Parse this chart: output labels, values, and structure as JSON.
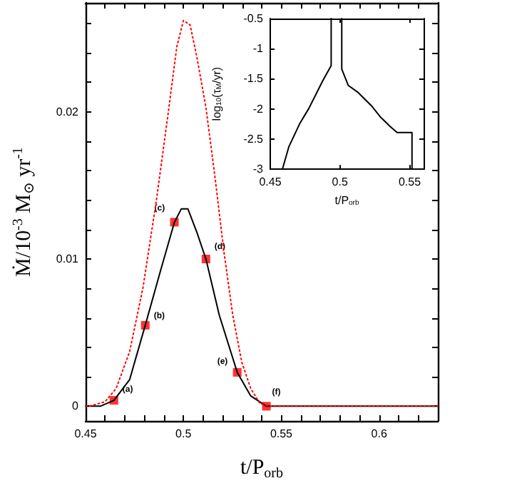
{
  "chart_data": [
    {
      "type": "line",
      "xlabel": "t/P$_{orb}$",
      "ylabel": "Ṁ/10$^{-3}$ M$_{⊙}$ yr$^{-1}$",
      "xlim": [
        0.45,
        0.63
      ],
      "ylim": [
        -0.001,
        0.0274
      ],
      "xticks": [
        0.45,
        {
          "value": 0.46,
          "label": null
        },
        {
          "value": 0.47,
          "label": null
        },
        {
          "value": 0.48,
          "label": null
        },
        {
          "value": 0.49,
          "label": null
        },
        0.5,
        {
          "value": 0.51,
          "label": null
        },
        {
          "value": 0.52,
          "label": null
        },
        {
          "value": 0.53,
          "label": null
        },
        {
          "value": 0.54,
          "label": null
        },
        0.55,
        {
          "value": 0.56,
          "label": null
        },
        {
          "value": 0.57,
          "label": null
        },
        {
          "value": 0.58,
          "label": null
        },
        {
          "value": 0.59,
          "label": null
        },
        0.6,
        {
          "value": 0.61,
          "label": null
        },
        {
          "value": 0.62,
          "label": null
        }
      ],
      "yticks": [
        0,
        {
          "value": 0.002,
          "label": null
        },
        {
          "value": 0.004,
          "label": null
        },
        {
          "value": 0.006,
          "label": null
        },
        {
          "value": 0.008,
          "label": null
        },
        0.01,
        {
          "value": 0.012,
          "label": null
        },
        {
          "value": 0.014,
          "label": null
        },
        {
          "value": 0.016,
          "label": null
        },
        {
          "value": 0.018,
          "label": null
        },
        0.02,
        {
          "value": 0.022,
          "label": null
        },
        {
          "value": 0.024,
          "label": null
        },
        {
          "value": 0.026,
          "label": null
        }
      ],
      "grid": false,
      "series": [
        {
          "type": "line",
          "color": "#000000",
          "line_style": "solid",
          "marker": "none",
          "x": [
            0.45,
            0.4576,
            0.4645,
            0.4725,
            0.4805,
            0.4885,
            0.4954,
            0.4989,
            0.5023,
            0.5069,
            0.5115,
            0.5183,
            0.5275,
            0.5344,
            0.5424,
            0.63
          ],
          "values": [
            0,
            0,
            0.0004,
            0.0018,
            0.0055,
            0.0093,
            0.0125,
            0.0134,
            0.0134,
            0.0118,
            0.01,
            0.0062,
            0.0023,
            0.0007,
            0,
            0
          ]
        },
        {
          "type": "line",
          "color": "#ff0000",
          "line_style": "dotted",
          "marker": "none",
          "x": [
            0.45,
            0.4518,
            0.4599,
            0.4656,
            0.4725,
            0.4794,
            0.4862,
            0.492,
            0.4966,
            0.5,
            0.5034,
            0.5069,
            0.5115,
            0.5161,
            0.5206,
            0.5252,
            0.5298,
            0.5344,
            0.539,
            0.5436,
            0.63
          ],
          "values": [
            0,
            0,
            0.0003,
            0.0012,
            0.0037,
            0.0081,
            0.014,
            0.0197,
            0.0244,
            0.0262,
            0.0259,
            0.0237,
            0.0203,
            0.0156,
            0.0106,
            0.0062,
            0.003,
            0.0012,
            0.0002,
            0,
            0
          ]
        },
        {
          "type": "scatter",
          "color": "#ff0000",
          "marker": "square",
          "x": [
            0.4645,
            0.4805,
            0.4954,
            0.5115,
            0.5275,
            0.5424
          ],
          "values": [
            0.0004,
            0.0055,
            0.0125,
            0.01,
            0.0023,
            0
          ]
        }
      ],
      "annotations": [
        {
          "text": "(a)",
          "x": 0.4645,
          "y": 0.0004
        },
        {
          "text": "(b)",
          "x": 0.4805,
          "y": 0.0055
        },
        {
          "text": "(c)",
          "x": 0.4954,
          "y": 0.0125
        },
        {
          "text": "(d)",
          "x": 0.5115,
          "y": 0.01
        },
        {
          "text": "(e)",
          "x": 0.5275,
          "y": 0.0023
        },
        {
          "text": "(f)",
          "x": 0.5424,
          "y": 0
        }
      ]
    },
    {
      "type": "line",
      "xlabel": "t/P$_{orb}$",
      "ylabel": "log$_{10}$(τ$_{Ṁ}$/yr)",
      "xlim": [
        0.45,
        0.56
      ],
      "ylim": [
        -3,
        -0.5
      ],
      "xticks": [
        0.45,
        0.5,
        0.55
      ],
      "yticks": [
        -3,
        -2.5,
        -2,
        -1.5,
        -1,
        -0.5
      ],
      "grid": false,
      "series": [
        {
          "type": "line",
          "color": "#000000",
          "line_style": "solid",
          "marker": "none",
          "x": [
            0.4587,
            0.4633,
            0.471,
            0.4777,
            0.4827,
            0.4877,
            0.4937,
            0.4937
          ],
          "values": [
            -3,
            -2.63,
            -2.25,
            -1.99,
            -1.76,
            -1.53,
            -1.28,
            -0.5
          ]
        },
        {
          "type": "line",
          "color": "#000000",
          "line_style": "solid",
          "marker": "none",
          "x": [
            0.5013,
            0.5013,
            0.506,
            0.5127,
            0.5227,
            0.5293,
            0.536,
            0.541,
            0.5517,
            0.5517
          ],
          "values": [
            -0.5,
            -1.34,
            -1.61,
            -1.72,
            -1.95,
            -2.14,
            -2.29,
            -2.39,
            -2.39,
            -3
          ]
        }
      ]
    }
  ]
}
